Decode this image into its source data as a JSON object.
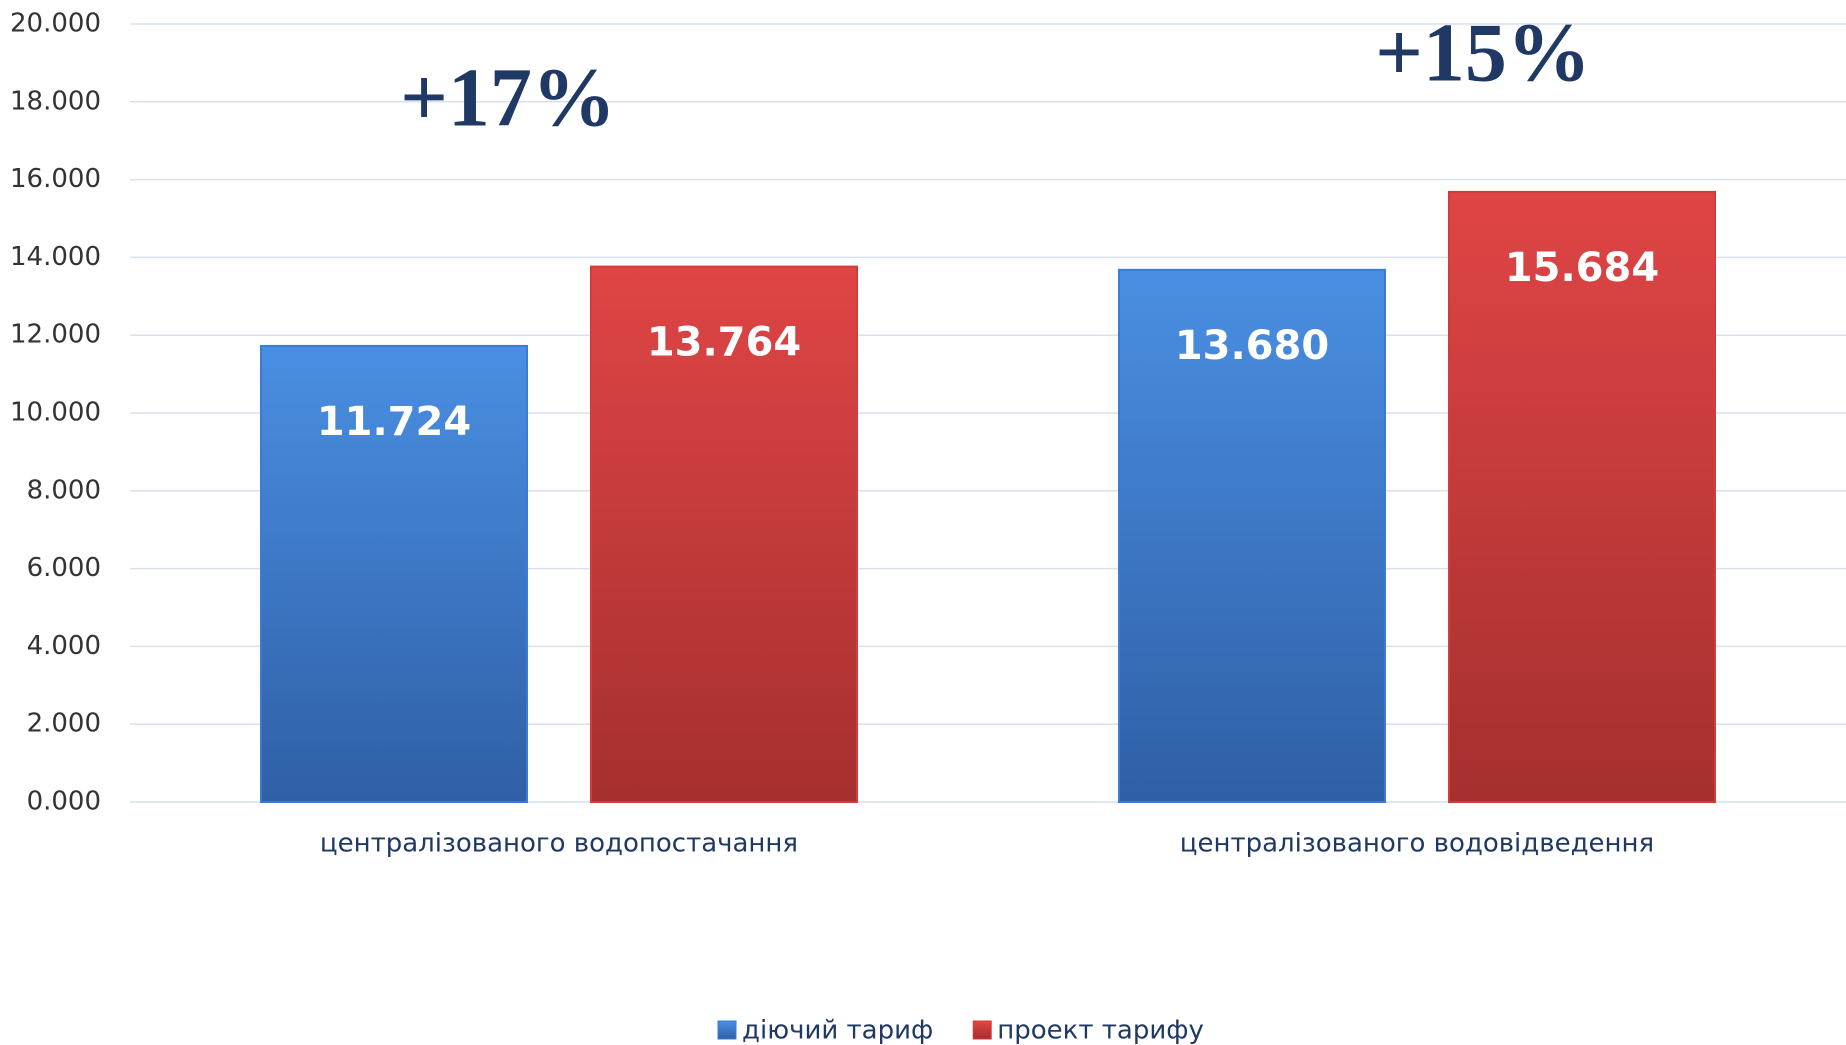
{
  "chart_data": {
    "type": "bar",
    "categories": [
      "централізованого водопостачання",
      "централізованого водовідведення"
    ],
    "series": [
      {
        "name": "діючий тариф",
        "color": "#3b7bd4",
        "values": [
          11.724,
          13.68
        ],
        "value_labels": [
          "11.724",
          "13.680"
        ]
      },
      {
        "name": "проект тарифу",
        "color": "#d43b3b",
        "values": [
          13.764,
          15.684
        ],
        "value_labels": [
          "13.764",
          "15.684"
        ]
      }
    ],
    "annotations": [
      "+17%",
      "+15%"
    ],
    "ylim": [
      0,
      20
    ],
    "yticks": [
      {
        "value": 0,
        "label": "0.000"
      },
      {
        "value": 2,
        "label": "2.000"
      },
      {
        "value": 4,
        "label": "4.000"
      },
      {
        "value": 6,
        "label": "6.000"
      },
      {
        "value": 8,
        "label": "8.000"
      },
      {
        "value": 10,
        "label": "10.000"
      },
      {
        "value": 12,
        "label": "12.000"
      },
      {
        "value": 14,
        "label": "14.000"
      },
      {
        "value": 16,
        "label": "16.000"
      },
      {
        "value": 18,
        "label": "18.000"
      },
      {
        "value": 20,
        "label": "20.000"
      }
    ],
    "grid": true,
    "legend": "bottom"
  }
}
